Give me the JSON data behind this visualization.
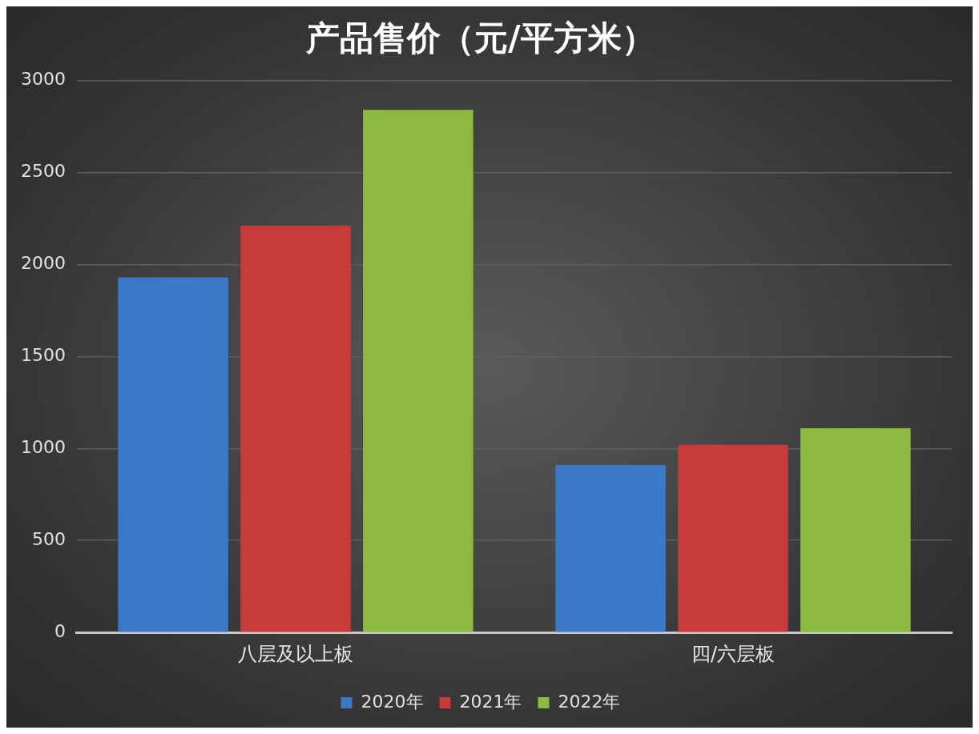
{
  "chart_data": {
    "type": "bar",
    "title": "产品售价（元/平方米）",
    "categories": [
      "八层及以上板",
      "四/六层板"
    ],
    "series": [
      {
        "name": "2020年",
        "color": "#3a78c8",
        "values": [
          1930,
          910
        ]
      },
      {
        "name": "2021年",
        "color": "#c93a3a",
        "values": [
          2210,
          1020
        ]
      },
      {
        "name": "2022年",
        "color": "#8cba40",
        "values": [
          2840,
          1110
        ]
      }
    ],
    "ylim": [
      0,
      3000
    ],
    "yticks": [
      0,
      500,
      1000,
      1500,
      2000,
      2500,
      3000
    ],
    "grid": "y",
    "legend": "bottom"
  }
}
